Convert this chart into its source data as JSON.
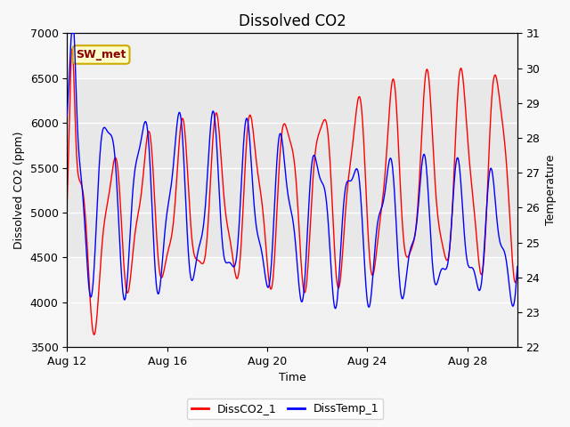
{
  "title": "Dissolved CO2",
  "xlabel": "Time",
  "ylabel_left": "Dissolved CO2 (ppm)",
  "ylabel_right": "Temperature",
  "annotation_text": "SW_met",
  "legend_entries": [
    "DissCO2_1",
    "DissTemp_1"
  ],
  "line_colors": [
    "red",
    "blue"
  ],
  "ylim_left": [
    3500,
    7000
  ],
  "ylim_right": [
    22.0,
    31.0
  ],
  "xlim_days": [
    0,
    18
  ],
  "xtick_labels": [
    "Aug 12",
    "Aug 16",
    "Aug 20",
    "Aug 24",
    "Aug 28"
  ],
  "xtick_positions": [
    0,
    4,
    8,
    12,
    16
  ],
  "bg_outer_color": "#f0f0f0",
  "bg_inner_color": "#dcdcdc",
  "bg_band_color": "#e8e8e8",
  "title_fontsize": 12,
  "label_fontsize": 9,
  "tick_fontsize": 9,
  "annot_fontsize": 9
}
